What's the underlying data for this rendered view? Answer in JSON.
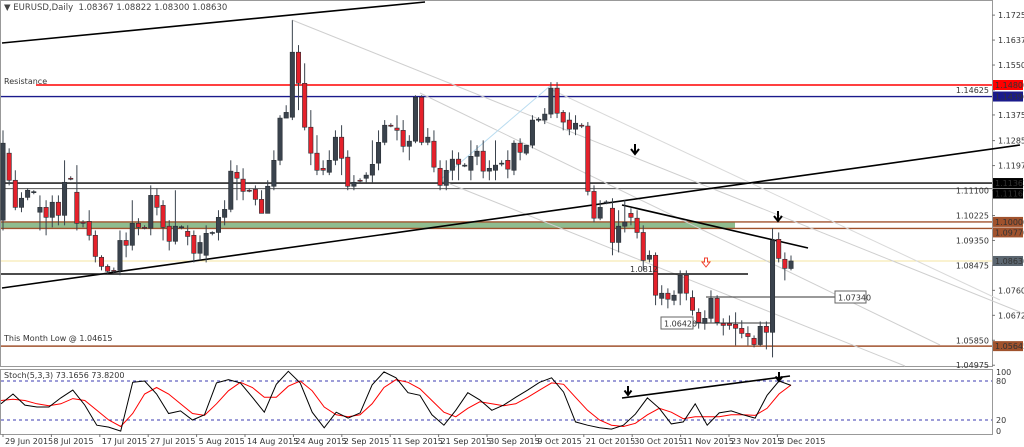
{
  "header": {
    "symbol": "EURUSD,Daily",
    "open": "1.08367",
    "high": "1.08822",
    "low": "1.08300",
    "close": "1.08630",
    "menu_icon": "triangle-down-icon"
  },
  "stoch_header": "Stoch(5,3,3) 73.1656 73.8200",
  "colors": {
    "bull": "#3a434d",
    "bear": "#e5212b",
    "resistance": "#ff0000",
    "navy": "#1a1a8c",
    "brown": "#a0522d",
    "zone": "#8fbc8f",
    "bid": "#f5e6a0",
    "stoch_main": "#000000",
    "stoch_signal": "#ff0000"
  },
  "annotations": {
    "resistance_label": "Resistance",
    "month_low_label": "This Month Low @ 1.04615",
    "level_1_0812": "1.0812",
    "level_1_07340": "1.07340",
    "level_1_06420": "1.06420"
  },
  "price_levels": [
    {
      "price": 1.148,
      "label": "1.14800",
      "color": "#ff0000"
    },
    {
      "price": 1.14396,
      "label": "1.14396",
      "color": "#1a1a8c"
    },
    {
      "price": 1.11363,
      "label": "1.11363",
      "color": "#000000"
    },
    {
      "price": 1.11167,
      "label": "1.11167",
      "color": "#000000"
    },
    {
      "price": 1.1,
      "label": "1.10000",
      "color": "#a0522d"
    },
    {
      "price": 1.0977,
      "label": "1.09770",
      "color": "#a0522d"
    },
    {
      "price": 1.0863,
      "label": "1.08630",
      "color": "#5b6670"
    },
    {
      "price": 1.05645,
      "label": "1.05645",
      "color": "#a0522d"
    }
  ],
  "chart_data": {
    "type": "candlestick",
    "title": "EURUSD,Daily",
    "ylim": [
      1.04975,
      1.1725
    ],
    "y_ticks": [
      "1.17250",
      "1.16375",
      "1.15500",
      "1.14625",
      "1.13750",
      "1.12850",
      "1.11975",
      "1.11100",
      "1.10225",
      "1.09350",
      "1.08475",
      "1.07600",
      "1.06725",
      "1.05850",
      "1.04975"
    ],
    "x_ticks": [
      "29 Jun 2015",
      "8 Jul 2015",
      "17 Jul 2015",
      "27 Jul 2015",
      "5 Aug 2015",
      "14 Aug 2015",
      "24 Aug 2015",
      "2 Sep 2015",
      "11 Sep 2015",
      "21 Sep 2015",
      "30 Sep 2015",
      "9 Oct 2015",
      "21 Oct 2015",
      "30 Oct 2015",
      "11 Nov 2015",
      "23 Nov 2015",
      "3 Dec 2015"
    ],
    "ohlc": [
      [
        1.1006,
        1.1321,
        1.097,
        1.1276
      ],
      [
        1.1241,
        1.1258,
        1.1128,
        1.1146
      ],
      [
        1.1146,
        1.1181,
        1.1041,
        1.1051
      ],
      [
        1.1051,
        1.1104,
        1.1034,
        1.1083
      ],
      [
        1.1086,
        1.1118,
        1.1076,
        1.1111
      ],
      [
        1.1104,
        1.1111,
        1.1097,
        1.1106
      ],
      [
        1.1034,
        1.1093,
        1.097,
        1.1051
      ],
      [
        1.1051,
        1.1076,
        1.0953,
        1.1016
      ],
      [
        1.1016,
        1.1093,
        1.0981,
        1.1069
      ],
      [
        1.1069,
        1.1093,
        1.0988,
        1.1023
      ],
      [
        1.1023,
        1.1216,
        1.0988,
        1.1139
      ],
      [
        1.1153,
        1.116,
        1.1146,
        1.115
      ],
      [
        1.1104,
        1.1199,
        1.097,
        1.0995
      ],
      [
        1.0999,
        1.1006,
        1.0981,
        1.0995
      ],
      [
        1.1002,
        1.1041,
        1.0935,
        1.0953
      ],
      [
        1.0953,
        1.097,
        1.0858,
        1.0879
      ],
      [
        1.0876,
        1.0883,
        1.083,
        1.0844
      ],
      [
        1.0844,
        1.0851,
        1.0819,
        1.0827
      ],
      [
        1.083,
        1.084,
        1.082,
        1.0827
      ],
      [
        1.083,
        1.097,
        1.0813,
        1.0935
      ],
      [
        1.0935,
        1.0963,
        1.0876,
        1.0918
      ],
      [
        1.0918,
        1.1076,
        1.09,
        1.0995
      ],
      [
        1.0995,
        1.1013,
        1.0953,
        1.0981
      ],
      [
        1.0981,
        1.0988,
        1.0974,
        1.0978
      ],
      [
        1.0978,
        1.1128,
        1.0953,
        1.1093
      ],
      [
        1.1093,
        1.1118,
        1.1023,
        1.1051
      ],
      [
        1.1058,
        1.1076,
        1.0935,
        1.0981
      ],
      [
        1.0985,
        1.1006,
        1.09,
        1.0932
      ],
      [
        1.0932,
        1.1111,
        1.0921,
        1.0985
      ],
      [
        1.0981,
        1.0988,
        1.0974,
        1.0983
      ],
      [
        1.0967,
        1.0988,
        1.0918,
        1.0949
      ],
      [
        1.0953,
        1.097,
        1.0858,
        1.089
      ],
      [
        1.089,
        1.0953,
        1.0865,
        1.0928
      ],
      [
        1.0883,
        1.0988,
        1.0858,
        1.096
      ],
      [
        1.096,
        1.0967,
        1.0953,
        1.0963
      ],
      [
        1.0963,
        1.1041,
        1.0935,
        1.1016
      ],
      [
        1.1016,
        1.1076,
        1.0988,
        1.1044
      ],
      [
        1.1044,
        1.1216,
        1.1034,
        1.1178
      ],
      [
        1.1174,
        1.1199,
        1.1076,
        1.1153
      ],
      [
        1.115,
        1.1188,
        1.1076,
        1.1107
      ],
      [
        1.1111,
        1.1118,
        1.1104,
        1.111
      ],
      [
        1.1114,
        1.1128,
        1.1058,
        1.1079
      ],
      [
        1.1079,
        1.1111,
        1.103,
        1.103
      ],
      [
        1.103,
        1.1146,
        1.103,
        1.1125
      ],
      [
        1.1125,
        1.1251,
        1.1111,
        1.1216
      ],
      [
        1.1216,
        1.1374,
        1.1199,
        1.1364
      ],
      [
        1.1364,
        1.1409,
        1.1364,
        1.1384
      ],
      [
        1.1367,
        1.1707,
        1.1357,
        1.1595
      ],
      [
        1.1595,
        1.162,
        1.1392,
        1.1486
      ],
      [
        1.1486,
        1.1556,
        1.1321,
        1.1332
      ],
      [
        1.1332,
        1.1392,
        1.1199,
        1.1241
      ],
      [
        1.1241,
        1.1304,
        1.1164,
        1.1181
      ],
      [
        1.1188,
        1.1216,
        1.1164,
        1.1181
      ],
      [
        1.1174,
        1.1251,
        1.1164,
        1.1216
      ],
      [
        1.1216,
        1.1321,
        1.1199,
        1.1297
      ],
      [
        1.1297,
        1.1339,
        1.1164,
        1.1223
      ],
      [
        1.1227,
        1.1251,
        1.1111,
        1.1125
      ],
      [
        1.1125,
        1.1164,
        1.1111,
        1.1139
      ],
      [
        1.1146,
        1.1153,
        1.1139,
        1.1144
      ],
      [
        1.1153,
        1.1174,
        1.1139,
        1.1164
      ],
      [
        1.1164,
        1.1286,
        1.1139,
        1.1202
      ],
      [
        1.1206,
        1.1321,
        1.1181,
        1.1279
      ],
      [
        1.1279,
        1.1357,
        1.1269,
        1.1339
      ],
      [
        1.1339,
        1.1346,
        1.1332,
        1.1336
      ],
      [
        1.1329,
        1.1374,
        1.1286,
        1.1321
      ],
      [
        1.1321,
        1.1357,
        1.1244,
        1.1265
      ],
      [
        1.1265,
        1.1304,
        1.1216,
        1.1283
      ],
      [
        1.1283,
        1.1444,
        1.1276,
        1.1437
      ],
      [
        1.1437,
        1.1444,
        1.1269,
        1.1279
      ],
      [
        1.1279,
        1.1329,
        1.1269,
        1.1297
      ],
      [
        1.1283,
        1.1321,
        1.1174,
        1.1192
      ],
      [
        1.1188,
        1.1216,
        1.1111,
        1.1128
      ],
      [
        1.1128,
        1.1216,
        1.1111,
        1.1181
      ],
      [
        1.1181,
        1.1251,
        1.1146,
        1.122
      ],
      [
        1.122,
        1.1244,
        1.1146,
        1.1202
      ],
      [
        1.1199,
        1.1206,
        1.1192,
        1.1199
      ],
      [
        1.1181,
        1.1286,
        1.1146,
        1.123
      ],
      [
        1.123,
        1.1269,
        1.1199,
        1.1248
      ],
      [
        1.1248,
        1.1286,
        1.1153,
        1.1178
      ],
      [
        1.1178,
        1.1216,
        1.1146,
        1.1188
      ],
      [
        1.1181,
        1.1286,
        1.1146,
        1.1199
      ],
      [
        1.1206,
        1.1216,
        1.1195,
        1.1206
      ],
      [
        1.1216,
        1.1251,
        1.1153,
        1.1185
      ],
      [
        1.1181,
        1.1286,
        1.1164,
        1.1276
      ],
      [
        1.1276,
        1.1293,
        1.1216,
        1.1244
      ],
      [
        1.1241,
        1.1269,
        1.1234,
        1.1269
      ],
      [
        1.1269,
        1.1374,
        1.1258,
        1.1357
      ],
      [
        1.1357,
        1.1367,
        1.135,
        1.136
      ],
      [
        1.1357,
        1.1399,
        1.1343,
        1.1378
      ],
      [
        1.1378,
        1.149,
        1.1364,
        1.1469
      ],
      [
        1.1469,
        1.149,
        1.1364,
        1.1381
      ],
      [
        1.1384,
        1.1392,
        1.1321,
        1.135
      ],
      [
        1.1357,
        1.1384,
        1.1304,
        1.1325
      ],
      [
        1.1325,
        1.1374,
        1.1304,
        1.1346
      ],
      [
        1.1339,
        1.1346,
        1.1329,
        1.1337
      ],
      [
        1.1336,
        1.135,
        1.1093,
        1.1107
      ],
      [
        1.1107,
        1.1128,
        1.0999,
        1.1013
      ],
      [
        1.1013,
        1.1076,
        1.1006,
        1.1051
      ],
      [
        1.1069,
        1.1076,
        1.1062,
        1.107
      ],
      [
        1.1048,
        1.1083,
        1.0883,
        1.0928
      ],
      [
        1.0928,
        1.1041,
        1.0893,
        1.0985
      ],
      [
        1.0985,
        1.1076,
        1.0963,
        1.0999
      ],
      [
        1.103,
        1.1048,
        1.0988,
        1.1016
      ],
      [
        1.1013,
        1.1041,
        1.0942,
        1.0963
      ],
      [
        1.0963,
        1.0988,
        1.083,
        1.0865
      ],
      [
        1.0869,
        1.09,
        1.0858,
        1.0883
      ],
      [
        1.0883,
        1.0893,
        1.0708,
        1.0743
      ],
      [
        1.0732,
        1.0778,
        1.0708,
        1.075
      ],
      [
        1.075,
        1.0767,
        1.0697,
        1.0729
      ],
      [
        1.0725,
        1.076,
        1.0708,
        1.0743
      ],
      [
        1.075,
        1.083,
        1.0708,
        1.0813
      ],
      [
        1.0813,
        1.083,
        1.0725,
        1.075
      ],
      [
        1.0735,
        1.076,
        1.0672,
        1.069
      ],
      [
        1.0683,
        1.0697,
        1.0626,
        1.0648
      ],
      [
        1.0644,
        1.069,
        1.0622,
        1.0662
      ],
      [
        1.0662,
        1.076,
        1.0648,
        1.0732
      ],
      [
        1.0732,
        1.0743,
        1.0637,
        1.0648
      ],
      [
        1.0644,
        1.0662,
        1.0602,
        1.0637
      ],
      [
        1.0644,
        1.0672,
        1.0622,
        1.0637
      ],
      [
        1.0641,
        1.0683,
        1.0567,
        1.0627
      ],
      [
        1.0627,
        1.0655,
        1.0592,
        1.0609
      ],
      [
        1.0609,
        1.0634,
        1.0567,
        1.0598
      ],
      [
        1.0592,
        1.0602,
        1.056,
        1.057
      ],
      [
        1.057,
        1.0651,
        1.0564,
        1.0634
      ],
      [
        1.0634,
        1.0651,
        1.0553,
        1.0613
      ],
      [
        1.0613,
        1.0978,
        1.0525,
        1.0935
      ],
      [
        1.0939,
        1.0963,
        1.0858,
        1.0872
      ],
      [
        1.0869,
        1.0893,
        1.0795,
        1.0837
      ],
      [
        1.08367,
        1.08822,
        1.083,
        1.0863
      ]
    ],
    "stochastic": {
      "params": "5,3,3",
      "levels": [
        20,
        80
      ],
      "ylim": [
        0,
        100
      ],
      "y_ticks": [
        "100",
        "80",
        "20",
        "0"
      ],
      "main": [
        45,
        60,
        43,
        40,
        40,
        54,
        66,
        43,
        12,
        9,
        3,
        78,
        80,
        60,
        30,
        34,
        20,
        28,
        77,
        82,
        77,
        55,
        32,
        75,
        95,
        77,
        32,
        8,
        32,
        23,
        31,
        74,
        94,
        85,
        62,
        58,
        28,
        12,
        35,
        62,
        51,
        35,
        43,
        55,
        66,
        78,
        85,
        63,
        17,
        12,
        8,
        6,
        12,
        29,
        54,
        38,
        14,
        17,
        45,
        12,
        31,
        34,
        28,
        23,
        58,
        80,
        73.17
      ],
      "signal": [
        50,
        52,
        50,
        45,
        42,
        45,
        53,
        50,
        35,
        20,
        10,
        30,
        60,
        70,
        60,
        45,
        30,
        27,
        45,
        65,
        78,
        70,
        55,
        55,
        72,
        80,
        65,
        40,
        28,
        25,
        28,
        45,
        70,
        82,
        78,
        68,
        50,
        32,
        25,
        38,
        48,
        45,
        42,
        45,
        55,
        66,
        77,
        75,
        55,
        35,
        20,
        12,
        10,
        15,
        28,
        38,
        32,
        22,
        25,
        25,
        25,
        28,
        28,
        27,
        38,
        60,
        73.82
      ]
    }
  }
}
